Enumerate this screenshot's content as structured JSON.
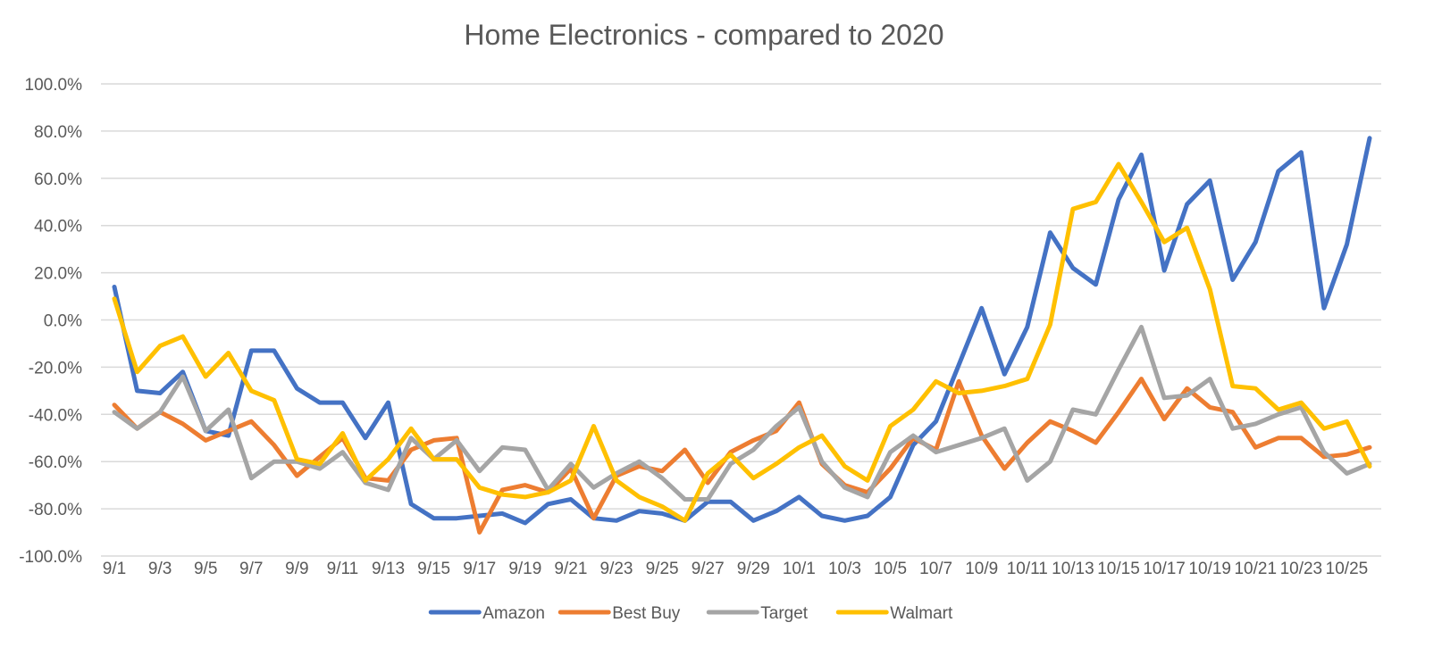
{
  "chart_data": {
    "type": "line",
    "title": "Home Electronics - compared to 2020",
    "xlabel": "",
    "ylabel": "",
    "ylim": [
      -100,
      100
    ],
    "y_ticks": [
      100,
      80,
      60,
      40,
      20,
      0,
      -20,
      -40,
      -60,
      -80,
      -100
    ],
    "y_tick_labels": [
      "100.0%",
      "80.0%",
      "60.0%",
      "40.0%",
      "20.0%",
      "0.0%",
      "-20.0%",
      "-40.0%",
      "-60.0%",
      "-80.0%",
      "-100.0%"
    ],
    "grid": true,
    "legend_position": "bottom",
    "x": [
      "9/1",
      "9/2",
      "9/3",
      "9/4",
      "9/5",
      "9/6",
      "9/7",
      "9/8",
      "9/9",
      "9/10",
      "9/11",
      "9/12",
      "9/13",
      "9/14",
      "9/15",
      "9/16",
      "9/17",
      "9/18",
      "9/19",
      "9/20",
      "9/21",
      "9/22",
      "9/23",
      "9/24",
      "9/25",
      "9/26",
      "9/27",
      "9/28",
      "9/29",
      "9/30",
      "10/1",
      "10/2",
      "10/3",
      "10/4",
      "10/5",
      "10/6",
      "10/7",
      "10/8",
      "10/9",
      "10/10",
      "10/11",
      "10/12",
      "10/13",
      "10/14",
      "10/15",
      "10/16",
      "10/17",
      "10/18",
      "10/19",
      "10/20",
      "10/21",
      "10/22",
      "10/23",
      "10/24",
      "10/25",
      "10/26"
    ],
    "x_tick_labels": [
      "9/1",
      "9/3",
      "9/5",
      "9/7",
      "9/9",
      "9/11",
      "9/13",
      "9/15",
      "9/17",
      "9/19",
      "9/21",
      "9/23",
      "9/25",
      "9/27",
      "9/29",
      "10/1",
      "10/3",
      "10/5",
      "10/7",
      "10/9",
      "10/11",
      "10/13",
      "10/15",
      "10/17",
      "10/19",
      "10/21",
      "10/23",
      "10/25"
    ],
    "series": [
      {
        "name": "Amazon",
        "color": "#4472c4",
        "values": [
          14,
          -30,
          -31,
          -22,
          -47,
          -49,
          -13,
          -13,
          -29,
          -35,
          -35,
          -50,
          -35,
          -78,
          -84,
          -84,
          -83,
          -82,
          -86,
          -78,
          -76,
          -84,
          -85,
          -81,
          -82,
          -85,
          -77,
          -77,
          -85,
          -81,
          -75,
          -83,
          -85,
          -83,
          -75,
          -53,
          -43,
          -19,
          5,
          -23,
          -3,
          37,
          22,
          15,
          51,
          70,
          21,
          49,
          59,
          17,
          33,
          63,
          71,
          5,
          32,
          77
        ]
      },
      {
        "name": "Best Buy",
        "color": "#ed7d31",
        "values": [
          -36,
          -46,
          -39,
          -44,
          -51,
          -47,
          -43,
          -53,
          -66,
          -58,
          -50,
          -67,
          -68,
          -55,
          -51,
          -50,
          -90,
          -72,
          -70,
          -73,
          -63,
          -84,
          -66,
          -62,
          -64,
          -55,
          -69,
          -56,
          -51,
          -47,
          -35,
          -61,
          -70,
          -73,
          -63,
          -50,
          -55,
          -26,
          -49,
          -63,
          -52,
          -43,
          -47,
          -52,
          -39,
          -25,
          -42,
          -29,
          -37,
          -39,
          -54,
          -50,
          -50,
          -58,
          -57,
          -54
        ]
      },
      {
        "name": "Target",
        "color": "#a5a5a5",
        "values": [
          -39,
          -46,
          -39,
          -24,
          -47,
          -38,
          -67,
          -60,
          -60,
          -63,
          -56,
          -69,
          -72,
          -50,
          -59,
          -51,
          -64,
          -54,
          -55,
          -72,
          -61,
          -71,
          -65,
          -60,
          -67,
          -76,
          -76,
          -61,
          -55,
          -45,
          -37,
          -60,
          -71,
          -75,
          -56,
          -49,
          -56,
          -53,
          -50,
          -46,
          -68,
          -60,
          -38,
          -40,
          -21,
          -3,
          -33,
          -32,
          -25,
          -46,
          -44,
          -40,
          -37,
          -56,
          -65,
          -61
        ]
      },
      {
        "name": "Walmart",
        "color": "#ffc000",
        "values": [
          9,
          -22,
          -11,
          -7,
          -24,
          -14,
          -30,
          -34,
          -59,
          -61,
          -48,
          -68,
          -59,
          -46,
          -59,
          -59,
          -71,
          -74,
          -75,
          -73,
          -68,
          -45,
          -68,
          -75,
          -79,
          -85,
          -65,
          -57,
          -67,
          -61,
          -54,
          -49,
          -62,
          -68,
          -45,
          -38,
          -26,
          -31,
          -30,
          -28,
          -25,
          -2,
          47,
          50,
          66,
          50,
          33,
          39,
          13,
          -28,
          -29,
          -38,
          -35,
          -46,
          -43,
          -62
        ]
      }
    ]
  }
}
